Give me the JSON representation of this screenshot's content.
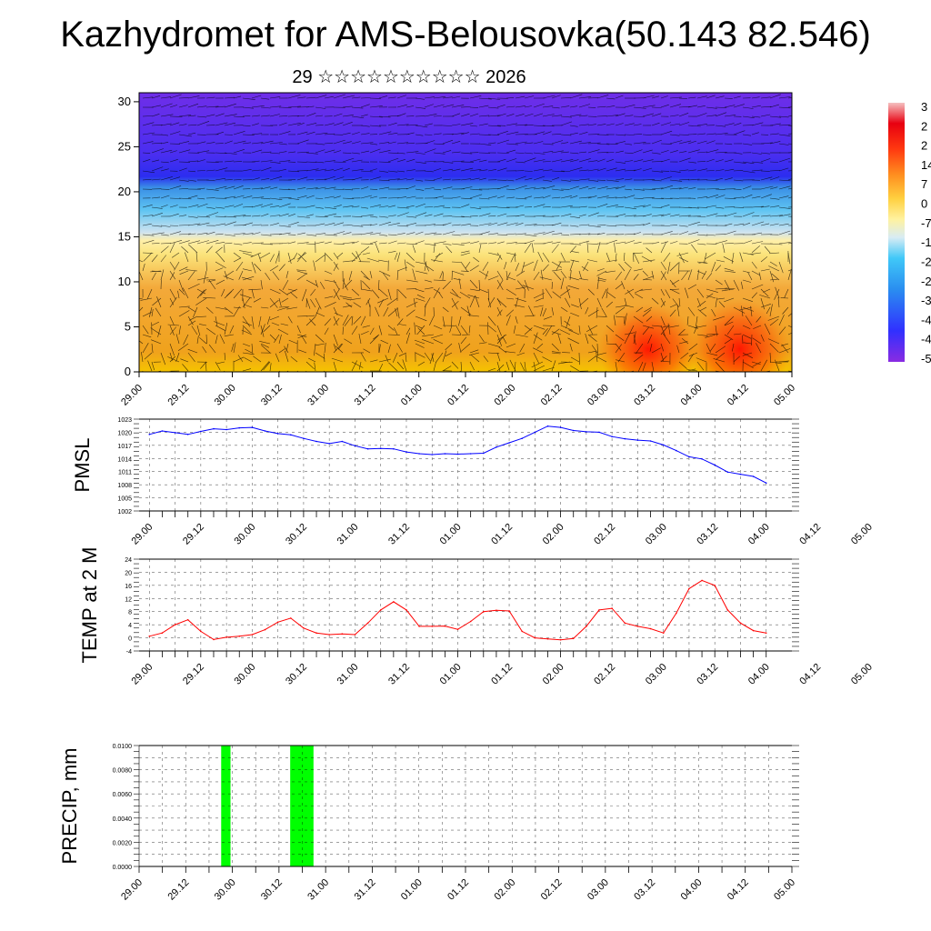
{
  "title": "Kazhydromet for AMS-Belousovka(50.143 82.546)",
  "subtitle": "29 ☆☆☆☆☆☆☆☆☆☆ 2026",
  "chart_data": [
    {
      "type": "heatmap",
      "name": "vertical-cross-section",
      "title": "Kazhydromet for AMS-Belousovka(50.143 82.546)",
      "x_tick_labels": [
        "29.00",
        "29.12",
        "30.00",
        "30.12",
        "31.00",
        "31.12",
        "01.00",
        "01.12",
        "02.00",
        "02.12",
        "03.00",
        "03.12",
        "04.00",
        "04.12",
        "05.00"
      ],
      "y_ticks": [
        0,
        5,
        10,
        15,
        20,
        25,
        30
      ],
      "ylim": [
        0,
        31
      ],
      "colorbar_labels": [
        "3",
        "2",
        "2",
        "14",
        "7",
        "0",
        "-7",
        "-1",
        "-2",
        "-2",
        "-3",
        "-4",
        "-4",
        "-5"
      ],
      "colorbar_range": [
        -56,
        35
      ],
      "overlay": "wind vector arrows"
    },
    {
      "type": "line",
      "name": "pmsl",
      "ylabel": "PMSL",
      "x_tick_labels": [
        "29.00",
        "29.12",
        "30.00",
        "30.12",
        "31.00",
        "31.12",
        "01.00",
        "01.12",
        "02.00",
        "02.12",
        "03.00",
        "03.12",
        "04.00",
        "04.12",
        "05.00"
      ],
      "y_ticks": [
        1002,
        1005,
        1008,
        1011,
        1014,
        1017,
        1020,
        1023
      ],
      "ylim": [
        1002,
        1023
      ],
      "xlim": [
        -0.1,
        6.25
      ],
      "x": [
        0,
        0.125,
        0.25,
        0.375,
        0.5,
        0.625,
        0.75,
        0.875,
        1.0,
        1.125,
        1.25,
        1.375,
        1.5,
        1.625,
        1.75,
        1.875,
        2.0,
        2.125,
        2.25,
        2.375,
        2.5,
        2.625,
        2.75,
        2.875,
        3.0,
        3.125,
        3.25,
        3.375,
        3.5,
        3.625,
        3.75,
        3.875,
        4.0,
        4.125,
        4.25,
        4.375,
        4.5,
        4.625,
        4.75,
        4.875,
        5.0,
        5.125,
        5.25,
        5.375,
        5.5,
        5.625,
        5.75,
        5.875,
        6.0
      ],
      "series": [
        {
          "name": "PMSL",
          "color": "#0000ff",
          "values": [
            1019.5,
            1020.3,
            1019.9,
            1019.5,
            1020.2,
            1020.8,
            1020.6,
            1021.0,
            1021.1,
            1020.3,
            1019.7,
            1019.4,
            1018.6,
            1017.9,
            1017.4,
            1017.9,
            1016.9,
            1016.2,
            1016.3,
            1016.2,
            1015.5,
            1015.1,
            1014.9,
            1015.1,
            1015.0,
            1015.1,
            1015.2,
            1016.6,
            1017.6,
            1018.6,
            1020.0,
            1021.4,
            1021.1,
            1020.4,
            1020.1,
            1020.0,
            1019.0,
            1018.5,
            1018.2,
            1018.0,
            1017.1,
            1015.8,
            1014.4,
            1013.9,
            1012.5,
            1010.9,
            1010.4,
            1009.9,
            1008.4
          ]
        }
      ]
    },
    {
      "type": "line",
      "name": "temp-2m",
      "ylabel": "TEMP at 2 M",
      "x_tick_labels": [
        "29.00",
        "29.12",
        "30.00",
        "30.12",
        "31.00",
        "31.12",
        "01.00",
        "01.12",
        "02.00",
        "02.12",
        "03.00",
        "03.12",
        "04.00",
        "04.12",
        "05.00"
      ],
      "y_ticks": [
        -4,
        0,
        4,
        8,
        12,
        16,
        20,
        24
      ],
      "ylim": [
        -4,
        24
      ],
      "xlim": [
        -0.1,
        6.25
      ],
      "x": [
        0,
        0.125,
        0.25,
        0.375,
        0.5,
        0.625,
        0.75,
        0.875,
        1.0,
        1.125,
        1.25,
        1.375,
        1.5,
        1.625,
        1.75,
        1.875,
        2.0,
        2.125,
        2.25,
        2.375,
        2.5,
        2.625,
        2.75,
        2.875,
        3.0,
        3.125,
        3.25,
        3.375,
        3.5,
        3.625,
        3.75,
        3.875,
        4.0,
        4.125,
        4.25,
        4.375,
        4.5,
        4.625,
        4.75,
        4.875,
        5.0,
        5.125,
        5.25,
        5.375,
        5.5,
        5.625,
        5.75,
        5.875,
        6.0
      ],
      "series": [
        {
          "name": "TEMP",
          "color": "#ff0000",
          "values": [
            0.5,
            1.5,
            4.0,
            5.5,
            2.0,
            -0.5,
            0.2,
            0.5,
            1.0,
            2.5,
            4.8,
            6.0,
            3.0,
            1.5,
            1.0,
            1.2,
            1.0,
            4.5,
            8.5,
            11.0,
            8.5,
            3.5,
            3.5,
            3.6,
            2.6,
            5.0,
            8.0,
            8.4,
            8.2,
            2.0,
            0.0,
            -0.3,
            -0.6,
            -0.2,
            3.5,
            8.5,
            9.0,
            4.5,
            3.5,
            2.8,
            1.5,
            7.5,
            15.0,
            17.5,
            16.0,
            8.5,
            4.5,
            2.2,
            1.5
          ]
        }
      ]
    },
    {
      "type": "bar",
      "name": "precipitation",
      "ylabel": "PRECIP, mm",
      "x_tick_labels": [
        "29.00",
        "29.12",
        "30.00",
        "30.12",
        "31.00",
        "31.12",
        "01.00",
        "01.12",
        "02.00",
        "02.12",
        "03.00",
        "03.12",
        "04.00",
        "04.12",
        "05.00"
      ],
      "y_ticks": [
        "0.0000",
        "0.0020",
        "0.0040",
        "0.0060",
        "0.0080",
        "0.0100"
      ],
      "ylim": [
        0,
        0.01
      ],
      "xlim": [
        0,
        7
      ],
      "bars": [
        {
          "start": 0.88,
          "end": 0.98,
          "value": 0.01
        },
        {
          "start": 1.62,
          "end": 1.87,
          "value": 0.01
        }
      ],
      "color": "#00ff00"
    }
  ]
}
